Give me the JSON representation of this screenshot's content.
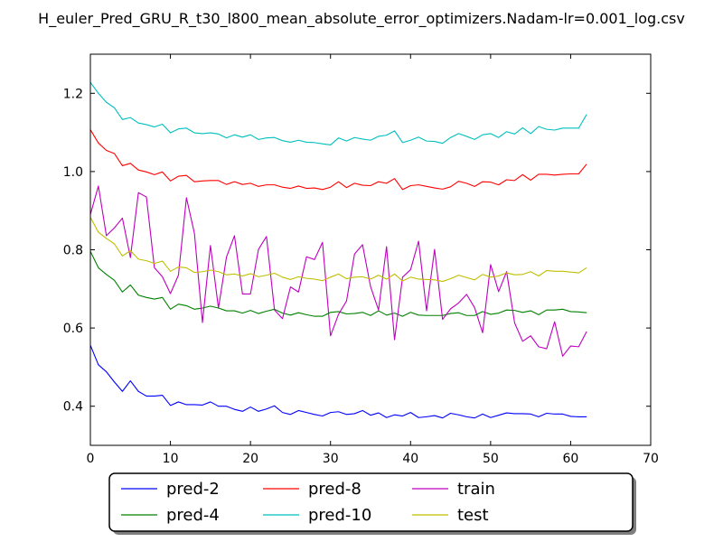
{
  "chart_data": {
    "type": "line",
    "title": "H_euler_Pred_GRU_R_t30_l800_mean_absolute_error_optimizers.Nadam-lr=0.001_log.csv",
    "xlabel": "",
    "ylabel": "",
    "xlim": [
      0,
      70
    ],
    "ylim": [
      0.3,
      1.3
    ],
    "xticks": [
      0,
      10,
      20,
      30,
      40,
      50,
      60,
      70
    ],
    "yticks": [
      0.4,
      0.6,
      0.8,
      1.0,
      1.2
    ],
    "xtick_labels": [
      "0",
      "10",
      "20",
      "30",
      "40",
      "50",
      "60",
      "70"
    ],
    "ytick_labels": [
      "0.4",
      "0.6",
      "0.8",
      "1.0",
      "1.2"
    ],
    "grid": false,
    "legend_position": "bottom-center",
    "series": [
      {
        "name": "pred-2",
        "color": "#0000ff",
        "values": [
          0.556,
          0.506,
          0.488,
          0.462,
          0.438,
          0.465,
          0.438,
          0.426,
          0.426,
          0.428,
          0.402,
          0.411,
          0.404,
          0.404,
          0.403,
          0.411,
          0.4,
          0.4,
          0.392,
          0.387,
          0.398,
          0.387,
          0.393,
          0.401,
          0.384,
          0.379,
          0.389,
          0.384,
          0.379,
          0.375,
          0.384,
          0.386,
          0.379,
          0.381,
          0.389,
          0.377,
          0.383,
          0.371,
          0.378,
          0.375,
          0.384,
          0.371,
          0.373,
          0.376,
          0.37,
          0.382,
          0.378,
          0.373,
          0.37,
          0.38,
          0.371,
          0.377,
          0.383,
          0.381,
          0.381,
          0.38,
          0.373,
          0.382,
          0.38,
          0.38,
          0.374,
          0.373,
          0.373
        ]
      },
      {
        "name": "pred-4",
        "color": "#008000",
        "values": [
          0.796,
          0.754,
          0.737,
          0.722,
          0.692,
          0.71,
          0.684,
          0.678,
          0.674,
          0.678,
          0.648,
          0.661,
          0.657,
          0.648,
          0.651,
          0.656,
          0.651,
          0.644,
          0.644,
          0.638,
          0.645,
          0.637,
          0.643,
          0.648,
          0.638,
          0.633,
          0.639,
          0.634,
          0.63,
          0.63,
          0.64,
          0.642,
          0.636,
          0.637,
          0.64,
          0.632,
          0.644,
          0.633,
          0.638,
          0.63,
          0.64,
          0.633,
          0.632,
          0.632,
          0.632,
          0.637,
          0.639,
          0.632,
          0.632,
          0.642,
          0.635,
          0.638,
          0.646,
          0.645,
          0.64,
          0.644,
          0.634,
          0.646,
          0.646,
          0.648,
          0.642,
          0.641,
          0.639
        ]
      },
      {
        "name": "pred-8",
        "color": "#ff0000",
        "values": [
          1.107,
          1.073,
          1.054,
          1.046,
          1.015,
          1.021,
          1.004,
          0.999,
          0.992,
          0.999,
          0.976,
          0.988,
          0.99,
          0.974,
          0.976,
          0.977,
          0.977,
          0.967,
          0.974,
          0.967,
          0.97,
          0.962,
          0.966,
          0.966,
          0.96,
          0.957,
          0.963,
          0.957,
          0.958,
          0.954,
          0.96,
          0.974,
          0.959,
          0.97,
          0.965,
          0.964,
          0.974,
          0.97,
          0.982,
          0.954,
          0.964,
          0.966,
          0.962,
          0.958,
          0.955,
          0.961,
          0.975,
          0.97,
          0.962,
          0.974,
          0.973,
          0.966,
          0.979,
          0.977,
          0.992,
          0.978,
          0.993,
          0.993,
          0.991,
          0.993,
          0.994,
          0.994,
          1.019
        ]
      },
      {
        "name": "pred-10",
        "color": "#00bfbf",
        "values": [
          1.228,
          1.2,
          1.177,
          1.163,
          1.133,
          1.138,
          1.124,
          1.12,
          1.114,
          1.121,
          1.099,
          1.109,
          1.111,
          1.099,
          1.097,
          1.099,
          1.096,
          1.086,
          1.094,
          1.088,
          1.094,
          1.082,
          1.086,
          1.087,
          1.079,
          1.075,
          1.08,
          1.075,
          1.074,
          1.071,
          1.068,
          1.086,
          1.078,
          1.087,
          1.083,
          1.08,
          1.09,
          1.093,
          1.104,
          1.074,
          1.08,
          1.088,
          1.078,
          1.077,
          1.072,
          1.087,
          1.097,
          1.09,
          1.082,
          1.094,
          1.097,
          1.087,
          1.102,
          1.096,
          1.112,
          1.097,
          1.115,
          1.108,
          1.106,
          1.111,
          1.111,
          1.111,
          1.146
        ]
      },
      {
        "name": "train",
        "color": "#bf00bf",
        "values": [
          0.89,
          0.963,
          0.836,
          0.856,
          0.881,
          0.78,
          0.946,
          0.935,
          0.754,
          0.731,
          0.688,
          0.735,
          0.933,
          0.842,
          0.614,
          0.811,
          0.651,
          0.781,
          0.836,
          0.687,
          0.687,
          0.801,
          0.834,
          0.646,
          0.624,
          0.705,
          0.692,
          0.782,
          0.775,
          0.819,
          0.58,
          0.635,
          0.669,
          0.789,
          0.813,
          0.706,
          0.646,
          0.808,
          0.57,
          0.73,
          0.749,
          0.822,
          0.644,
          0.801,
          0.622,
          0.649,
          0.664,
          0.686,
          0.652,
          0.588,
          0.762,
          0.693,
          0.744,
          0.613,
          0.566,
          0.58,
          0.552,
          0.547,
          0.616,
          0.528,
          0.554,
          0.552,
          0.591
        ]
      },
      {
        "name": "test",
        "color": "#bfbf00",
        "values": [
          0.883,
          0.845,
          0.829,
          0.815,
          0.784,
          0.798,
          0.776,
          0.772,
          0.765,
          0.771,
          0.745,
          0.756,
          0.754,
          0.742,
          0.744,
          0.748,
          0.744,
          0.736,
          0.738,
          0.733,
          0.739,
          0.731,
          0.735,
          0.74,
          0.73,
          0.724,
          0.731,
          0.727,
          0.725,
          0.721,
          0.73,
          0.738,
          0.726,
          0.73,
          0.731,
          0.725,
          0.735,
          0.725,
          0.738,
          0.72,
          0.73,
          0.725,
          0.724,
          0.723,
          0.719,
          0.726,
          0.735,
          0.729,
          0.723,
          0.737,
          0.73,
          0.733,
          0.741,
          0.736,
          0.737,
          0.744,
          0.733,
          0.747,
          0.745,
          0.745,
          0.743,
          0.741,
          0.754
        ]
      }
    ]
  }
}
